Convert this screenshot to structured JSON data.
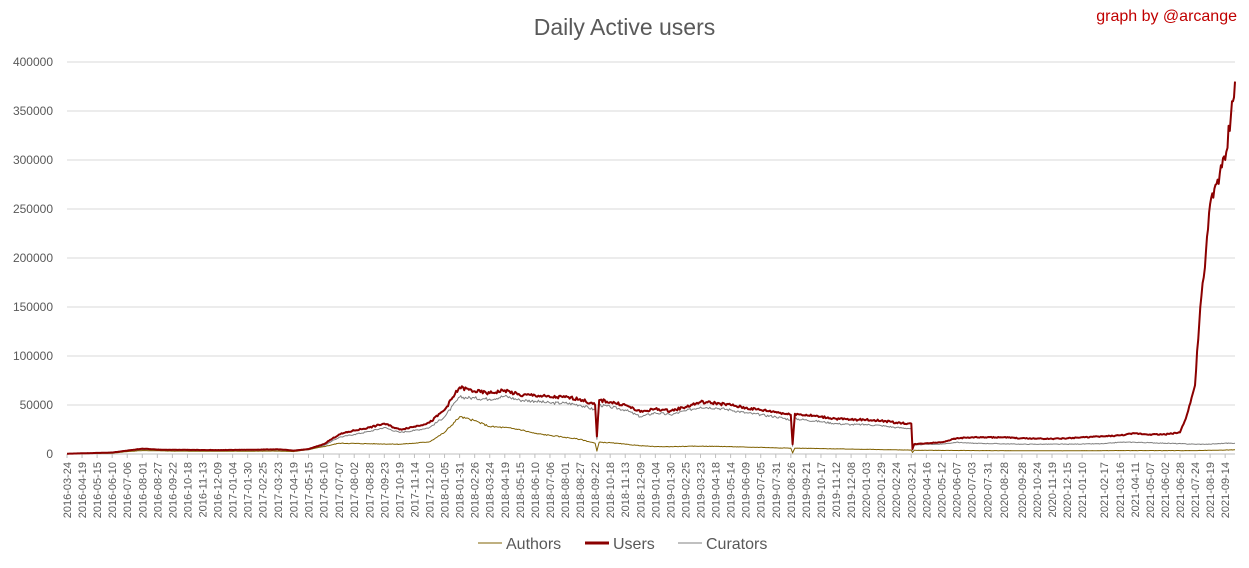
{
  "chart_data": {
    "type": "line",
    "title": "Daily Active users",
    "credit": "graph by @arcange",
    "xlabel": "",
    "ylabel": "",
    "ylim": [
      0,
      400000
    ],
    "y_ticks": [
      0,
      50000,
      100000,
      150000,
      200000,
      250000,
      300000,
      350000,
      400000
    ],
    "x_start": "2016-03-24",
    "x_end": "2021-10-01",
    "x_tick_labels": [
      "2016-03-24",
      "2016-04-19",
      "2016-05-15",
      "2016-06-10",
      "2016-07-06",
      "2016-08-01",
      "2016-08-27",
      "2016-09-22",
      "2016-10-18",
      "2016-11-13",
      "2016-12-09",
      "2017-01-04",
      "2017-01-30",
      "2017-02-25",
      "2017-03-23",
      "2017-04-19",
      "2017-05-15",
      "2017-06-10",
      "2017-07-07",
      "2017-08-02",
      "2017-08-28",
      "2017-09-23",
      "2017-10-19",
      "2017-11-14",
      "2017-12-10",
      "2018-01-05",
      "2018-01-31",
      "2018-02-26",
      "2018-03-24",
      "2018-04-19",
      "2018-05-15",
      "2018-06-10",
      "2018-07-06",
      "2018-08-01",
      "2018-08-27",
      "2018-09-22",
      "2018-10-18",
      "2018-11-13",
      "2018-12-09",
      "2019-01-04",
      "2019-01-30",
      "2019-02-25",
      "2019-03-23",
      "2019-04-18",
      "2019-05-14",
      "2019-06-09",
      "2019-07-05",
      "2019-07-31",
      "2019-08-26",
      "2019-09-21",
      "2019-10-17",
      "2019-11-12",
      "2019-12-08",
      "2020-01-03",
      "2020-01-29",
      "2020-02-24",
      "2020-03-21",
      "2020-04-16",
      "2020-05-12",
      "2020-06-07",
      "2020-07-03",
      "2020-07-31",
      "2020-08-28",
      "2020-09-28",
      "2020-10-24",
      "2020-11-19",
      "2020-12-15",
      "2021-01-10",
      "2021-02-17",
      "2021-03-16",
      "2021-04-11",
      "2021-05-07",
      "2021-06-02",
      "2021-06-28",
      "2021-07-24",
      "2021-08-19",
      "2021-09-14"
    ],
    "grid": true,
    "legend_position": "bottom",
    "colors": {
      "Authors": "#7f6000",
      "Users": "#8b0000",
      "Curators": "#808080"
    },
    "series": [
      {
        "name": "Authors",
        "points": [
          [
            "2016-03-24",
            200
          ],
          [
            "2016-06-10",
            800
          ],
          [
            "2016-07-06",
            2500
          ],
          [
            "2016-08-01",
            3500
          ],
          [
            "2016-09-22",
            3000
          ],
          [
            "2016-12-09",
            2800
          ],
          [
            "2017-03-23",
            3000
          ],
          [
            "2017-04-19",
            2500
          ],
          [
            "2017-05-15",
            4500
          ],
          [
            "2017-06-10",
            7500
          ],
          [
            "2017-07-07",
            11000
          ],
          [
            "2017-08-28",
            10500
          ],
          [
            "2017-10-19",
            10000
          ],
          [
            "2017-11-14",
            11000
          ],
          [
            "2017-12-10",
            12500
          ],
          [
            "2018-01-05",
            22000
          ],
          [
            "2018-01-31",
            38000
          ],
          [
            "2018-02-26",
            34000
          ],
          [
            "2018-03-24",
            28000
          ],
          [
            "2018-04-19",
            27000
          ],
          [
            "2018-05-15",
            25000
          ],
          [
            "2018-06-10",
            21000
          ],
          [
            "2018-07-06",
            19000
          ],
          [
            "2018-08-01",
            17000
          ],
          [
            "2018-08-27",
            15000
          ],
          [
            "2018-09-22",
            11000
          ],
          [
            "2018-09-25",
            3000
          ],
          [
            "2018-09-29",
            12000
          ],
          [
            "2018-10-18",
            11500
          ],
          [
            "2018-11-13",
            10000
          ],
          [
            "2018-12-09",
            8500
          ],
          [
            "2019-01-04",
            7500
          ],
          [
            "2019-01-30",
            7500
          ],
          [
            "2019-02-25",
            7800
          ],
          [
            "2019-03-23",
            8000
          ],
          [
            "2019-04-18",
            7800
          ],
          [
            "2019-05-14",
            7500
          ],
          [
            "2019-06-09",
            7000
          ],
          [
            "2019-07-05",
            6800
          ],
          [
            "2019-07-31",
            6300
          ],
          [
            "2019-08-26",
            6000
          ],
          [
            "2019-08-29",
            1000
          ],
          [
            "2019-09-02",
            6000
          ],
          [
            "2019-10-17",
            5500
          ],
          [
            "2019-12-08",
            5000
          ],
          [
            "2020-01-29",
            4500
          ],
          [
            "2020-03-21",
            4000
          ],
          [
            "2020-03-23",
            1500
          ],
          [
            "2020-03-26",
            3800
          ],
          [
            "2020-06-07",
            3600
          ],
          [
            "2020-09-28",
            3300
          ],
          [
            "2020-12-15",
            3300
          ],
          [
            "2021-03-16",
            3500
          ],
          [
            "2021-06-02",
            3500
          ],
          [
            "2021-07-24",
            3500
          ],
          [
            "2021-09-14",
            4000
          ],
          [
            "2021-10-01",
            4300
          ]
        ]
      },
      {
        "name": "Users",
        "points": [
          [
            "2016-03-24",
            300
          ],
          [
            "2016-06-10",
            1500
          ],
          [
            "2016-07-06",
            3500
          ],
          [
            "2016-08-01",
            5500
          ],
          [
            "2016-08-27",
            4500
          ],
          [
            "2016-09-22",
            4300
          ],
          [
            "2016-12-09",
            4000
          ],
          [
            "2017-01-30",
            4300
          ],
          [
            "2017-03-23",
            4800
          ],
          [
            "2017-04-19",
            3500
          ],
          [
            "2017-05-15",
            5000
          ],
          [
            "2017-06-10",
            10000
          ],
          [
            "2017-07-07",
            20000
          ],
          [
            "2017-08-02",
            24000
          ],
          [
            "2017-08-28",
            27000
          ],
          [
            "2017-09-23",
            31000
          ],
          [
            "2017-10-19",
            25000
          ],
          [
            "2017-11-14",
            28000
          ],
          [
            "2017-12-10",
            32000
          ],
          [
            "2018-01-05",
            45000
          ],
          [
            "2018-01-31",
            68000
          ],
          [
            "2018-02-26",
            64000
          ],
          [
            "2018-03-24",
            62000
          ],
          [
            "2018-04-19",
            65000
          ],
          [
            "2018-05-15",
            60000
          ],
          [
            "2018-06-10",
            60000
          ],
          [
            "2018-07-06",
            58000
          ],
          [
            "2018-08-01",
            58000
          ],
          [
            "2018-08-27",
            56000
          ],
          [
            "2018-09-22",
            50000
          ],
          [
            "2018-09-25",
            18000
          ],
          [
            "2018-09-29",
            55000
          ],
          [
            "2018-10-18",
            53000
          ],
          [
            "2018-11-13",
            50000
          ],
          [
            "2018-12-09",
            43000
          ],
          [
            "2019-01-04",
            46000
          ],
          [
            "2019-01-30",
            44000
          ],
          [
            "2019-02-25",
            48000
          ],
          [
            "2019-03-23",
            53000
          ],
          [
            "2019-04-18",
            52000
          ],
          [
            "2019-05-14",
            50000
          ],
          [
            "2019-06-09",
            47000
          ],
          [
            "2019-07-05",
            45000
          ],
          [
            "2019-07-31",
            43000
          ],
          [
            "2019-08-26",
            40000
          ],
          [
            "2019-08-29",
            10000
          ],
          [
            "2019-09-02",
            41000
          ],
          [
            "2019-10-17",
            38000
          ],
          [
            "2019-11-12",
            36000
          ],
          [
            "2019-12-08",
            35000
          ],
          [
            "2020-01-03",
            35000
          ],
          [
            "2020-01-29",
            34000
          ],
          [
            "2020-02-24",
            32000
          ],
          [
            "2020-03-21",
            31000
          ],
          [
            "2020-03-23",
            5000
          ],
          [
            "2020-03-26",
            10000
          ],
          [
            "2020-04-16",
            11000
          ],
          [
            "2020-05-12",
            12000
          ],
          [
            "2020-06-07",
            16000
          ],
          [
            "2020-07-03",
            17000
          ],
          [
            "2020-08-28",
            17000
          ],
          [
            "2020-09-28",
            16000
          ],
          [
            "2020-11-19",
            15500
          ],
          [
            "2020-12-15",
            16000
          ],
          [
            "2021-01-10",
            17000
          ],
          [
            "2021-02-17",
            18000
          ],
          [
            "2021-03-16",
            19000
          ],
          [
            "2021-04-11",
            21000
          ],
          [
            "2021-05-07",
            20000
          ],
          [
            "2021-06-02",
            20000
          ],
          [
            "2021-06-28",
            22000
          ],
          [
            "2021-07-10",
            40000
          ],
          [
            "2021-07-24",
            70000
          ],
          [
            "2021-08-02",
            150000
          ],
          [
            "2021-08-10",
            190000
          ],
          [
            "2021-08-19",
            255000
          ],
          [
            "2021-09-01",
            280000
          ],
          [
            "2021-09-14",
            300000
          ],
          [
            "2021-09-24",
            345000
          ],
          [
            "2021-10-01",
            380000
          ]
        ]
      },
      {
        "name": "Curators",
        "points": [
          [
            "2016-03-24",
            250
          ],
          [
            "2016-06-10",
            1200
          ],
          [
            "2016-07-06",
            3000
          ],
          [
            "2016-08-01",
            4500
          ],
          [
            "2016-09-22",
            3800
          ],
          [
            "2016-12-09",
            3500
          ],
          [
            "2017-03-23",
            4200
          ],
          [
            "2017-04-19",
            3000
          ],
          [
            "2017-05-15",
            4300
          ],
          [
            "2017-06-10",
            8500
          ],
          [
            "2017-07-07",
            17000
          ],
          [
            "2017-08-02",
            20000
          ],
          [
            "2017-08-28",
            23000
          ],
          [
            "2017-09-23",
            27000
          ],
          [
            "2017-10-19",
            22000
          ],
          [
            "2017-11-14",
            24000
          ],
          [
            "2017-12-10",
            27000
          ],
          [
            "2018-01-05",
            38000
          ],
          [
            "2018-01-31",
            58000
          ],
          [
            "2018-02-26",
            57000
          ],
          [
            "2018-03-24",
            56000
          ],
          [
            "2018-04-19",
            59000
          ],
          [
            "2018-05-15",
            55000
          ],
          [
            "2018-06-10",
            54000
          ],
          [
            "2018-07-06",
            52000
          ],
          [
            "2018-08-01",
            52000
          ],
          [
            "2018-08-27",
            50000
          ],
          [
            "2018-09-22",
            45000
          ],
          [
            "2018-09-25",
            15000
          ],
          [
            "2018-09-29",
            50000
          ],
          [
            "2018-10-18",
            48000
          ],
          [
            "2018-11-13",
            45000
          ],
          [
            "2018-12-09",
            38000
          ],
          [
            "2019-01-04",
            42000
          ],
          [
            "2019-01-30",
            40000
          ],
          [
            "2019-02-25",
            44000
          ],
          [
            "2019-03-23",
            48000
          ],
          [
            "2019-04-18",
            47000
          ],
          [
            "2019-05-14",
            45000
          ],
          [
            "2019-06-09",
            42000
          ],
          [
            "2019-07-05",
            40000
          ],
          [
            "2019-07-31",
            38000
          ],
          [
            "2019-08-26",
            35000
          ],
          [
            "2019-08-29",
            8000
          ],
          [
            "2019-09-02",
            36000
          ],
          [
            "2019-10-17",
            33000
          ],
          [
            "2019-11-12",
            31000
          ],
          [
            "2019-12-08",
            30000
          ],
          [
            "2020-01-03",
            30000
          ],
          [
            "2020-01-29",
            29000
          ],
          [
            "2020-02-24",
            27000
          ],
          [
            "2020-03-21",
            26000
          ],
          [
            "2020-03-23",
            4000
          ],
          [
            "2020-03-26",
            9000
          ],
          [
            "2020-04-16",
            10000
          ],
          [
            "2020-05-12",
            10000
          ],
          [
            "2020-06-07",
            12000
          ],
          [
            "2020-07-03",
            11000
          ],
          [
            "2020-09-28",
            10000
          ],
          [
            "2020-12-15",
            10000
          ],
          [
            "2021-02-17",
            10500
          ],
          [
            "2021-03-16",
            12000
          ],
          [
            "2021-04-11",
            12000
          ],
          [
            "2021-06-02",
            11000
          ],
          [
            "2021-07-24",
            10000
          ],
          [
            "2021-08-19",
            10000
          ],
          [
            "2021-09-14",
            11000
          ],
          [
            "2021-10-01",
            11000
          ]
        ]
      }
    ]
  }
}
